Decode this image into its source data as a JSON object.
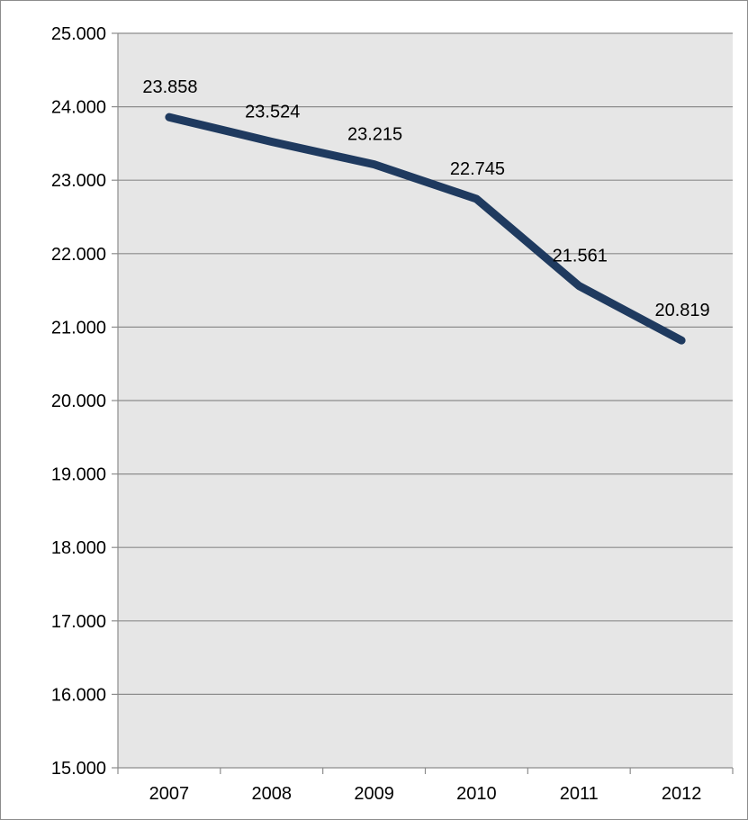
{
  "chart_data": {
    "type": "line",
    "title": "",
    "xlabel": "",
    "ylabel": "",
    "categories": [
      "2007",
      "2008",
      "2009",
      "2010",
      "2011",
      "2012"
    ],
    "series": [
      {
        "values": [
          23858,
          23524,
          23215,
          22745,
          21561,
          20819
        ],
        "data_labels": [
          "23.858",
          "23.524",
          "23.215",
          "22.745",
          "21.561",
          "20.819"
        ],
        "color": "#1f3a5f"
      }
    ],
    "ylim": [
      15000,
      25000
    ],
    "y_ticks": [
      15000,
      16000,
      17000,
      18000,
      19000,
      20000,
      21000,
      22000,
      23000,
      24000,
      25000
    ],
    "y_tick_labels": [
      "15.000",
      "16.000",
      "17.000",
      "18.000",
      "19.000",
      "20.000",
      "21.000",
      "22.000",
      "23.000",
      "24.000",
      "25.000"
    ],
    "grid": true,
    "legend": "none",
    "colors": {
      "plot_background": "#e6e6e6",
      "gridline": "#8c8c8c",
      "axis": "#8c8c8c",
      "frame_border": "#8c8c8c",
      "text": "#000000"
    }
  }
}
